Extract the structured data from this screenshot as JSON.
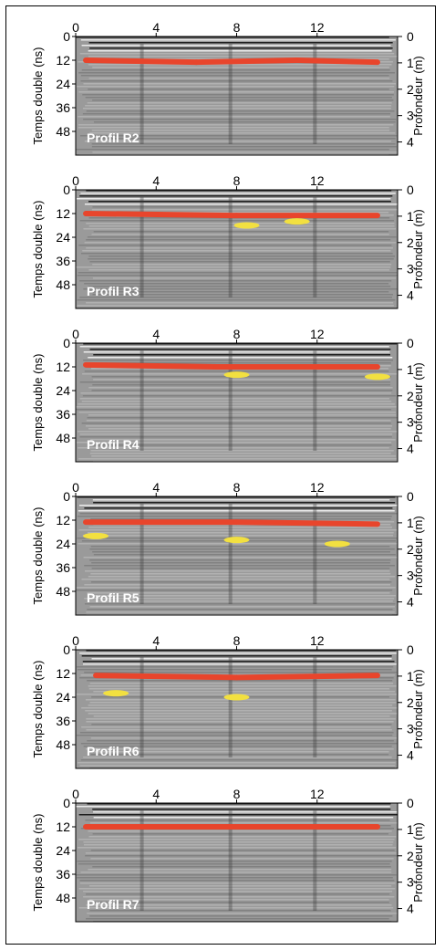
{
  "chart_data": [
    {
      "type": "heatmap",
      "panel_label": "Profil  R2",
      "x_ticks": [
        "0",
        "4",
        "8",
        "12"
      ],
      "y_ticks_left": [
        "0",
        "12",
        "24",
        "36",
        "48"
      ],
      "y_ticks_right": [
        "0",
        "1",
        "2",
        "3",
        "4"
      ],
      "ylabel_left": "Temps double (ns)",
      "ylabel_right": "Profondeur  (m)",
      "xlim": [
        0,
        16
      ],
      "ylim_time_ns": [
        0,
        60
      ],
      "ylim_depth_m": [
        0,
        4.5
      ],
      "picked_reflectors": {
        "red": [
          [
            0.5,
            12
          ],
          [
            6,
            13
          ],
          [
            11,
            12
          ],
          [
            15,
            13
          ]
        ],
        "yellow": []
      }
    },
    {
      "type": "heatmap",
      "panel_label": "Profil  R3",
      "x_ticks": [
        "0",
        "4",
        "8",
        "12"
      ],
      "y_ticks_left": [
        "0",
        "12",
        "24",
        "36",
        "48"
      ],
      "y_ticks_right": [
        "0",
        "1",
        "2",
        "3",
        "4"
      ],
      "ylabel_left": "Temps double (ns)",
      "ylabel_right": "Profondeur  (m)",
      "xlim": [
        0,
        16
      ],
      "ylim_time_ns": [
        0,
        60
      ],
      "ylim_depth_m": [
        0,
        4.5
      ],
      "picked_reflectors": {
        "red": [
          [
            0.5,
            12
          ],
          [
            8,
            13
          ],
          [
            15,
            13
          ]
        ],
        "yellow": [
          [
            8.5,
            18
          ],
          [
            11,
            16
          ]
        ]
      }
    },
    {
      "type": "heatmap",
      "panel_label": "Profil  R4",
      "x_ticks": [
        "0",
        "4",
        "8",
        "12"
      ],
      "y_ticks_left": [
        "0",
        "12",
        "24",
        "36",
        "48"
      ],
      "y_ticks_right": [
        "0",
        "1",
        "2",
        "3",
        "4"
      ],
      "ylabel_left": "Temps double (ns)",
      "ylabel_right": "Profondeur  (m)",
      "xlim": [
        0,
        16
      ],
      "ylim_time_ns": [
        0,
        60
      ],
      "ylim_depth_m": [
        0,
        4.5
      ],
      "picked_reflectors": {
        "red": [
          [
            0.5,
            11
          ],
          [
            7,
            12
          ],
          [
            15,
            12
          ]
        ],
        "yellow": [
          [
            8,
            16
          ],
          [
            15,
            17
          ]
        ]
      }
    },
    {
      "type": "heatmap",
      "panel_label": "Profil  R5",
      "x_ticks": [
        "0",
        "4",
        "8",
        "12"
      ],
      "y_ticks_left": [
        "0",
        "12",
        "24",
        "36",
        "48"
      ],
      "y_ticks_right": [
        "0",
        "1",
        "2",
        "3",
        "4"
      ],
      "ylabel_left": "Temps double (ns)",
      "ylabel_right": "Profondeur  (m)",
      "xlim": [
        0,
        16
      ],
      "ylim_time_ns": [
        0,
        60
      ],
      "ylim_depth_m": [
        0,
        4.5
      ],
      "picked_reflectors": {
        "red": [
          [
            0.5,
            13
          ],
          [
            8,
            13
          ],
          [
            15,
            14
          ]
        ],
        "yellow": [
          [
            1,
            20
          ],
          [
            8,
            22
          ],
          [
            13,
            24
          ]
        ]
      }
    },
    {
      "type": "heatmap",
      "panel_label": "Profil  R6",
      "x_ticks": [
        "0",
        "4",
        "8",
        "12"
      ],
      "y_ticks_left": [
        "0",
        "12",
        "24",
        "36",
        "48"
      ],
      "y_ticks_right": [
        "0",
        "1",
        "2",
        "3",
        "4"
      ],
      "ylabel_left": "Temps double (ns)",
      "ylabel_right": "Profondeur  (m)",
      "xlim": [
        0,
        16
      ],
      "ylim_time_ns": [
        0,
        60
      ],
      "ylim_depth_m": [
        0,
        4.5
      ],
      "picked_reflectors": {
        "red": [
          [
            1,
            13
          ],
          [
            8,
            14
          ],
          [
            15,
            13
          ]
        ],
        "yellow": [
          [
            2,
            22
          ],
          [
            8,
            24
          ]
        ]
      }
    },
    {
      "type": "heatmap",
      "panel_label": "Profil  R7",
      "x_ticks": [
        "0",
        "4",
        "8",
        "12"
      ],
      "y_ticks_left": [
        "0",
        "12",
        "24",
        "36",
        "48"
      ],
      "y_ticks_right": [
        "0",
        "1",
        "2",
        "3",
        "4"
      ],
      "ylabel_left": "Temps double (ns)",
      "ylabel_right": "Profondeur  (m)",
      "xlim": [
        0,
        16
      ],
      "ylim_time_ns": [
        0,
        60
      ],
      "ylim_depth_m": [
        0,
        4.5
      ],
      "picked_reflectors": {
        "red": [
          [
            0.5,
            12
          ],
          [
            8,
            12
          ],
          [
            15,
            12
          ]
        ],
        "yellow": []
      }
    }
  ],
  "colors": {
    "reflector_red": "#e8452c",
    "reflector_yellow": "#f2e040",
    "radargram_gray": "#9a9a9a"
  }
}
